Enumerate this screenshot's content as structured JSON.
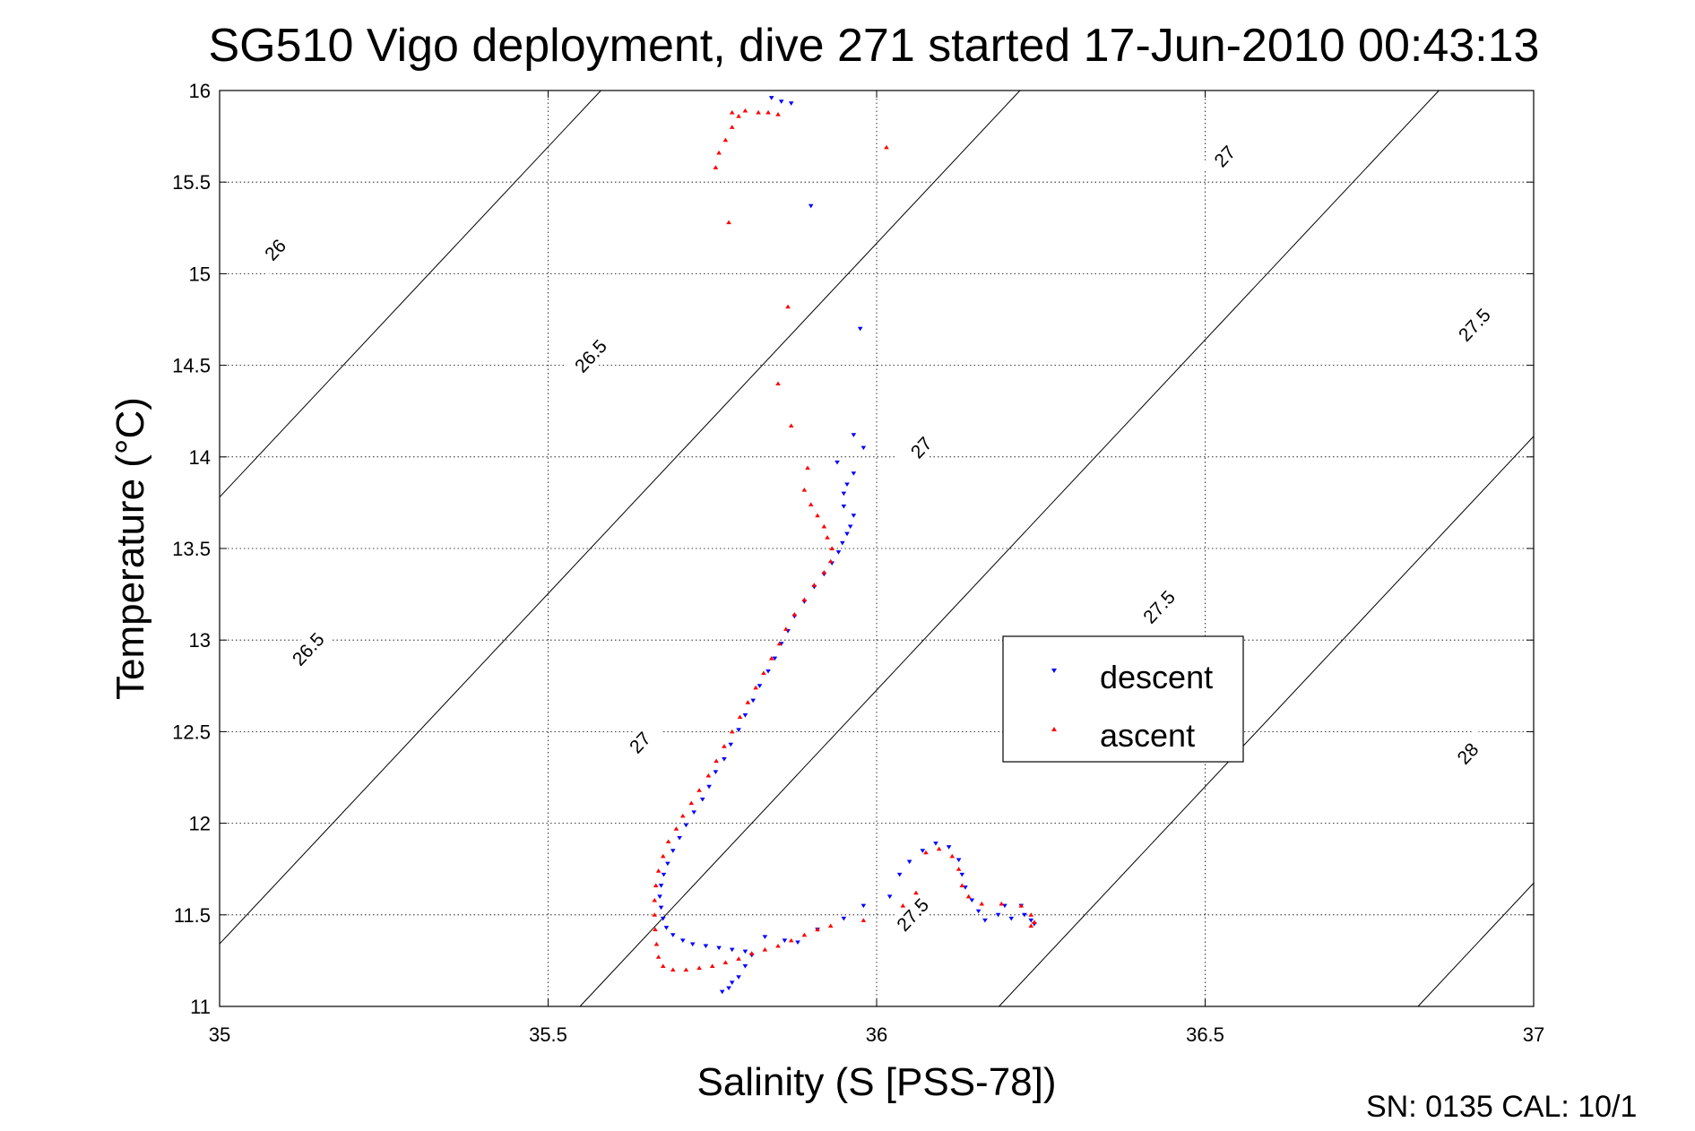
{
  "chart_data": {
    "type": "scatter",
    "title": "SG510 Vigo deployment, dive 271 started 17-Jun-2010 00:43:13",
    "xlabel": "Salinity (S [PSS-78])",
    "ylabel": "Temperature (°C)",
    "xlim": [
      35,
      37
    ],
    "ylim": [
      11,
      16
    ],
    "xticks": [
      35,
      35.5,
      36,
      36.5,
      37
    ],
    "xtick_labels": [
      "35",
      "35.5",
      "36",
      "36.5",
      "37"
    ],
    "yticks": [
      11,
      11.5,
      12,
      12.5,
      13,
      13.5,
      14,
      14.5,
      15,
      15.5,
      16
    ],
    "ytick_labels": [
      "11",
      "11.5",
      "12",
      "12.5",
      "13",
      "13.5",
      "14",
      "14.5",
      "15",
      "15.5",
      "16"
    ],
    "grid": true,
    "legend_position": "center-right",
    "footer": "SN: 0135  CAL: 10/1",
    "isopycnals": {
      "levels": [
        26,
        26.5,
        27,
        27.5,
        28
      ],
      "labels": [
        {
          "text": "26",
          "s": 35.085,
          "t": 15.13
        },
        {
          "text": "26.5",
          "s": 35.565,
          "t": 14.55
        },
        {
          "text": "26.5",
          "s": 35.135,
          "t": 12.95
        },
        {
          "text": "27",
          "s": 36.068,
          "t": 14.05
        },
        {
          "text": "27",
          "s": 35.64,
          "t": 12.44
        },
        {
          "text": "27",
          "s": 36.53,
          "t": 15.64
        },
        {
          "text": "27.5",
          "s": 36.43,
          "t": 13.18
        },
        {
          "text": "27.5",
          "s": 36.055,
          "t": 11.5
        },
        {
          "text": "27.5",
          "s": 36.91,
          "t": 14.72
        },
        {
          "text": "28",
          "s": 36.9,
          "t": 12.38
        }
      ]
    },
    "series": [
      {
        "name": "descent",
        "color": "#0000ff",
        "marker": "triangle-down",
        "points": [
          [
            35.84,
            15.96
          ],
          [
            35.855,
            15.94
          ],
          [
            35.87,
            15.93
          ],
          [
            35.9,
            15.37
          ],
          [
            35.975,
            14.7
          ],
          [
            35.965,
            14.12
          ],
          [
            35.98,
            14.05
          ],
          [
            35.94,
            13.97
          ],
          [
            35.965,
            13.91
          ],
          [
            35.955,
            13.85
          ],
          [
            35.95,
            13.8
          ],
          [
            35.95,
            13.73
          ],
          [
            35.965,
            13.68
          ],
          [
            35.96,
            13.62
          ],
          [
            35.955,
            13.58
          ],
          [
            35.948,
            13.53
          ],
          [
            35.942,
            13.48
          ],
          [
            35.932,
            13.42
          ],
          [
            35.92,
            13.36
          ],
          [
            35.905,
            13.29
          ],
          [
            35.89,
            13.21
          ],
          [
            35.875,
            13.13
          ],
          [
            35.865,
            13.05
          ],
          [
            35.855,
            12.98
          ],
          [
            35.845,
            12.9
          ],
          [
            35.835,
            12.83
          ],
          [
            35.822,
            12.75
          ],
          [
            35.812,
            12.67
          ],
          [
            35.8,
            12.59
          ],
          [
            35.79,
            12.51
          ],
          [
            35.778,
            12.43
          ],
          [
            35.768,
            12.35
          ],
          [
            35.755,
            12.28
          ],
          [
            35.745,
            12.2
          ],
          [
            35.735,
            12.13
          ],
          [
            35.722,
            12.06
          ],
          [
            35.71,
            11.99
          ],
          [
            35.7,
            11.92
          ],
          [
            35.69,
            11.85
          ],
          [
            35.682,
            11.78
          ],
          [
            35.676,
            11.72
          ],
          [
            35.672,
            11.66
          ],
          [
            35.67,
            11.6
          ],
          [
            35.672,
            11.54
          ],
          [
            35.675,
            11.48
          ],
          [
            35.68,
            11.43
          ],
          [
            35.69,
            11.39
          ],
          [
            35.705,
            11.36
          ],
          [
            35.72,
            11.34
          ],
          [
            35.74,
            11.33
          ],
          [
            35.76,
            11.32
          ],
          [
            35.78,
            11.31
          ],
          [
            35.8,
            11.3
          ],
          [
            35.81,
            11.28
          ],
          [
            35.8,
            11.22
          ],
          [
            35.79,
            11.16
          ],
          [
            35.78,
            11.13
          ],
          [
            35.775,
            11.1
          ],
          [
            35.765,
            11.08
          ],
          [
            35.83,
            11.38
          ],
          [
            35.86,
            11.36
          ],
          [
            35.88,
            11.35
          ],
          [
            35.91,
            11.42
          ],
          [
            35.95,
            11.48
          ],
          [
            35.98,
            11.55
          ],
          [
            36.02,
            11.6
          ],
          [
            36.035,
            11.72
          ],
          [
            36.05,
            11.79
          ],
          [
            36.07,
            11.85
          ],
          [
            36.09,
            11.89
          ],
          [
            36.11,
            11.87
          ],
          [
            36.125,
            11.8
          ],
          [
            36.13,
            11.72
          ],
          [
            36.135,
            11.65
          ],
          [
            36.145,
            11.58
          ],
          [
            36.155,
            11.52
          ],
          [
            36.165,
            11.47
          ],
          [
            36.185,
            11.5
          ],
          [
            36.205,
            11.48
          ],
          [
            36.225,
            11.5
          ],
          [
            36.235,
            11.47
          ],
          [
            36.24,
            11.45
          ],
          [
            36.22,
            11.55
          ],
          [
            36.195,
            11.55
          ]
        ]
      },
      {
        "name": "ascent",
        "color": "#ff0000",
        "marker": "triangle-up",
        "points": [
          [
            35.78,
            15.88
          ],
          [
            35.8,
            15.89
          ],
          [
            35.82,
            15.88
          ],
          [
            35.835,
            15.88
          ],
          [
            35.85,
            15.87
          ],
          [
            35.79,
            15.86
          ],
          [
            35.78,
            15.8
          ],
          [
            35.77,
            15.73
          ],
          [
            35.76,
            15.66
          ],
          [
            35.755,
            15.58
          ],
          [
            36.015,
            15.69
          ],
          [
            35.775,
            15.28
          ],
          [
            35.865,
            14.82
          ],
          [
            35.85,
            14.4
          ],
          [
            35.87,
            14.17
          ],
          [
            35.895,
            13.94
          ],
          [
            35.89,
            13.82
          ],
          [
            35.9,
            13.74
          ],
          [
            35.91,
            13.68
          ],
          [
            35.92,
            13.62
          ],
          [
            35.925,
            13.56
          ],
          [
            35.932,
            13.5
          ],
          [
            35.93,
            13.43
          ],
          [
            35.92,
            13.37
          ],
          [
            35.905,
            13.3
          ],
          [
            35.89,
            13.22
          ],
          [
            35.875,
            13.14
          ],
          [
            35.862,
            13.06
          ],
          [
            35.852,
            12.98
          ],
          [
            35.84,
            12.9
          ],
          [
            35.828,
            12.82
          ],
          [
            35.816,
            12.74
          ],
          [
            35.804,
            12.66
          ],
          [
            35.792,
            12.58
          ],
          [
            35.78,
            12.5
          ],
          [
            35.768,
            12.42
          ],
          [
            35.756,
            12.34
          ],
          [
            35.744,
            12.26
          ],
          [
            35.73,
            12.18
          ],
          [
            35.718,
            12.11
          ],
          [
            35.705,
            12.04
          ],
          [
            35.695,
            11.97
          ],
          [
            35.683,
            11.9
          ],
          [
            35.675,
            11.82
          ],
          [
            35.668,
            11.74
          ],
          [
            35.664,
            11.66
          ],
          [
            35.662,
            11.58
          ],
          [
            35.662,
            11.5
          ],
          [
            35.663,
            11.42
          ],
          [
            35.665,
            11.34
          ],
          [
            35.668,
            11.27
          ],
          [
            35.675,
            11.22
          ],
          [
            35.69,
            11.2
          ],
          [
            35.71,
            11.2
          ],
          [
            35.73,
            11.21
          ],
          [
            35.75,
            11.22
          ],
          [
            35.77,
            11.24
          ],
          [
            35.79,
            11.26
          ],
          [
            35.81,
            11.29
          ],
          [
            35.83,
            11.31
          ],
          [
            35.85,
            11.33
          ],
          [
            35.87,
            11.36
          ],
          [
            35.89,
            11.39
          ],
          [
            35.91,
            11.42
          ],
          [
            35.93,
            11.44
          ],
          [
            35.98,
            11.47
          ],
          [
            36.04,
            11.55
          ],
          [
            36.06,
            11.62
          ],
          [
            36.075,
            11.84
          ],
          [
            36.095,
            11.86
          ],
          [
            36.115,
            11.82
          ],
          [
            36.125,
            11.75
          ],
          [
            36.13,
            11.66
          ],
          [
            36.14,
            11.6
          ],
          [
            36.16,
            11.56
          ],
          [
            36.19,
            11.56
          ],
          [
            36.22,
            11.55
          ],
          [
            36.235,
            11.5
          ],
          [
            36.24,
            11.46
          ],
          [
            36.235,
            11.44
          ]
        ]
      }
    ]
  }
}
